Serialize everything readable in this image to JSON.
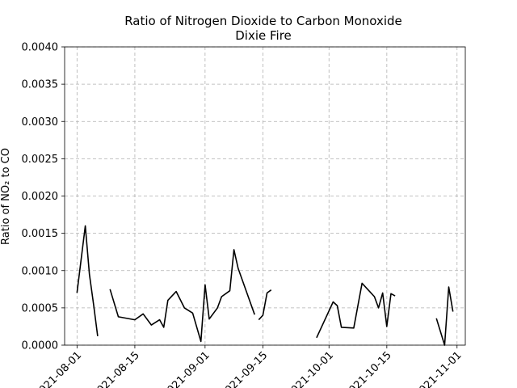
{
  "chart_data": {
    "type": "line",
    "title": "Ratio of Nitrogen Dioxide to Carbon Monoxide",
    "subtitle": "Dixie Fire",
    "xlabel": "",
    "ylabel": "Ratio of NO₂ to CO",
    "xlim": [
      "2021-07-29",
      "2021-11-03"
    ],
    "ylim": [
      0,
      0.004
    ],
    "grid": true,
    "x_ticks": [
      "2021-08-01",
      "2021-08-15",
      "2021-09-01",
      "2021-09-15",
      "2021-10-01",
      "2021-10-15",
      "2021-11-01"
    ],
    "x_tick_labels": [
      "2021-08-01",
      "2021-08-15",
      "2021-09-01",
      "2021-09-15",
      "2021-10-01",
      "2021-10-15",
      "2021-11-01"
    ],
    "y_ticks": [
      0,
      0.0005,
      0.001,
      0.0015,
      0.002,
      0.0025,
      0.003,
      0.0035,
      0.004
    ],
    "y_tick_labels": [
      "0.0000",
      "0.0005",
      "0.0010",
      "0.0015",
      "0.0020",
      "0.0025",
      "0.0030",
      "0.0035",
      "0.0040"
    ],
    "segments": [
      [
        [
          "2021-08-01",
          0.0007
        ],
        [
          "2021-08-03",
          0.0016
        ],
        [
          "2021-08-04",
          0.00095
        ],
        [
          "2021-08-05",
          0.00055
        ],
        [
          "2021-08-06",
          0.00012
        ]
      ],
      [
        [
          "2021-08-09",
          0.00075
        ],
        [
          "2021-08-11",
          0.00038
        ],
        [
          "2021-08-15",
          0.00034
        ],
        [
          "2021-08-17",
          0.00042
        ],
        [
          "2021-08-19",
          0.00027
        ],
        [
          "2021-08-21",
          0.00034
        ],
        [
          "2021-08-22",
          0.00024
        ],
        [
          "2021-08-23",
          0.0006
        ],
        [
          "2021-08-25",
          0.00072
        ],
        [
          "2021-08-27",
          0.0005
        ],
        [
          "2021-08-29",
          0.00043
        ],
        [
          "2021-08-31",
          5e-05
        ],
        [
          "2021-09-01",
          0.00081
        ],
        [
          "2021-09-02",
          0.00035
        ],
        [
          "2021-09-04",
          0.0005
        ],
        [
          "2021-09-05",
          0.00065
        ],
        [
          "2021-09-07",
          0.00073
        ],
        [
          "2021-09-08",
          0.00128
        ],
        [
          "2021-09-09",
          0.00103
        ],
        [
          "2021-09-13",
          0.00041
        ]
      ],
      [
        [
          "2021-09-14",
          0.00034
        ],
        [
          "2021-09-15",
          0.0004
        ],
        [
          "2021-09-16",
          0.0007
        ],
        [
          "2021-09-17",
          0.00074
        ]
      ],
      [
        [
          "2021-09-28",
          0.0001
        ],
        [
          "2021-10-02",
          0.00058
        ],
        [
          "2021-10-03",
          0.00053
        ],
        [
          "2021-10-04",
          0.00024
        ],
        [
          "2021-10-07",
          0.00023
        ],
        [
          "2021-10-09",
          0.00083
        ],
        [
          "2021-10-12",
          0.00065
        ],
        [
          "2021-10-13",
          0.0005
        ],
        [
          "2021-10-14",
          0.0007
        ],
        [
          "2021-10-15",
          0.00025
        ],
        [
          "2021-10-16",
          0.00069
        ],
        [
          "2021-10-17",
          0.00066
        ]
      ],
      [
        [
          "2021-10-27",
          0.00036
        ],
        [
          "2021-10-28",
          0.00018
        ],
        [
          "2021-10-29",
          0.0
        ],
        [
          "2021-10-30",
          0.00078
        ],
        [
          "2021-10-31",
          0.00045
        ]
      ]
    ]
  }
}
